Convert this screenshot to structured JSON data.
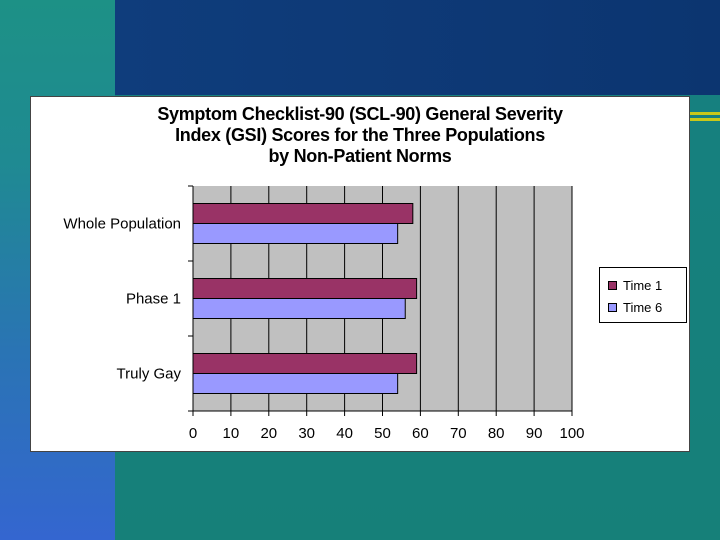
{
  "chart_data": {
    "type": "bar",
    "orientation": "horizontal",
    "title_lines": [
      "Symptom Checklist-90 (SCL-90) General Severity",
      "Index (GSI) Scores for the Three Populations",
      "by Non-Patient Norms"
    ],
    "categories": [
      "Whole Population",
      "Phase 1",
      "Truly Gay"
    ],
    "series": [
      {
        "name": "Time 1",
        "color": "#993366",
        "values": [
          58,
          59,
          59
        ]
      },
      {
        "name": "Time 6",
        "color": "#9999ff",
        "values": [
          54,
          56,
          54
        ]
      }
    ],
    "xlim": [
      0,
      100
    ],
    "xticks": [
      "0",
      "10",
      "20",
      "30",
      "40",
      "50",
      "60",
      "70",
      "80",
      "90",
      "100"
    ],
    "grid": true,
    "plot_background": "#c0c0c0",
    "legend_position": "right"
  }
}
